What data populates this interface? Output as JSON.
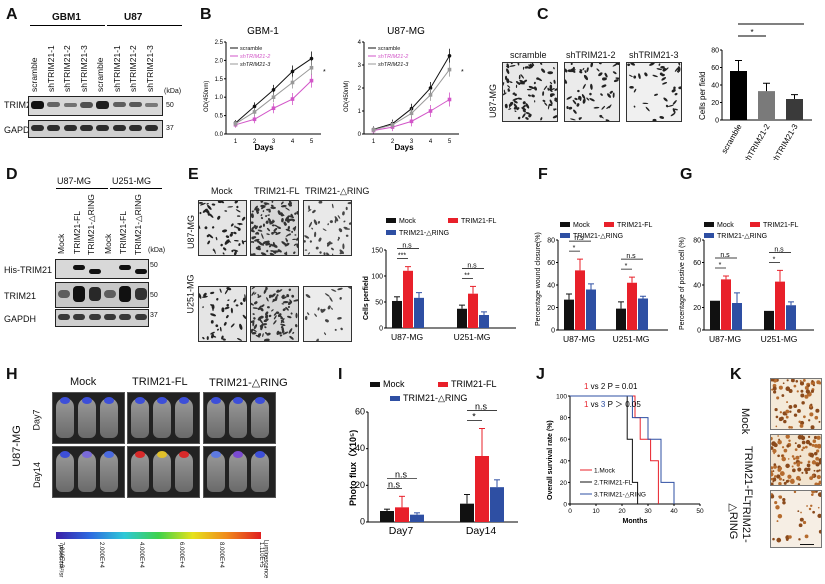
{
  "colors": {
    "mock": "#111111",
    "fl": "#e8202a",
    "dring": "#2e4fa3",
    "sc": "#111111",
    "sh2": "#d256c8",
    "sh3": "#999999"
  },
  "A": {
    "label": "A",
    "groups": [
      "GBM1",
      "U87"
    ],
    "lanes": [
      "scramble",
      "shTRIM21-1",
      "shTRIM21-2",
      "shTRIM21-3",
      "scramble",
      "shTRIM21-1",
      "shTRIM21-2",
      "shTRIM21-3"
    ],
    "rows": [
      "TRIM21",
      "GAPDH"
    ],
    "kda_label": "(kDa)",
    "kda": [
      "50",
      "37"
    ]
  },
  "B": {
    "label": "B",
    "titles": [
      "GBM-1",
      "U87-MG"
    ],
    "legend": [
      "scramble",
      "shTRIM21-2",
      "shTRIM21-3"
    ],
    "ylabel": "OD(450nm)",
    "xlabel": "Days",
    "x_ticks": [
      "1",
      "2",
      "3",
      "4",
      "5"
    ],
    "y_ticks_left": [
      "0.0",
      "0.5",
      "1.0",
      "1.5",
      "2.0",
      "2.5"
    ],
    "y_ticks_right": [
      "0",
      "1",
      "2",
      "3",
      "4"
    ],
    "sig": "*"
  },
  "C": {
    "label": "C",
    "cell_line": "U87-MG",
    "panel_titles": [
      "scramble",
      "shTRIM21-2",
      "shTRIM21-3"
    ],
    "ylabel": "Cells per field",
    "y_ticks": [
      "0",
      "20",
      "40",
      "60",
      "80"
    ],
    "sig": "*"
  },
  "D": {
    "label": "D",
    "groups": [
      "U87-MG",
      "U251-MG"
    ],
    "lanes": [
      "Mock",
      "TRIM21-FL",
      "TRIM21-△RING",
      "Mock",
      "TRIM21-FL",
      "TRIM21-△RING"
    ],
    "rows": [
      "His-TRIM21",
      "TRIM21",
      "GAPDH"
    ],
    "kda_label": "(kDa)",
    "kda": [
      "50",
      "50",
      "37"
    ]
  },
  "E": {
    "label": "E",
    "col_titles": [
      "Mock",
      "TRIM21-FL",
      "TRIM21-△RING"
    ],
    "row_titles": [
      "U87-MG",
      "U251-MG"
    ],
    "ylabel": "Cells perfield",
    "y_ticks": [
      "0",
      "50",
      "100",
      "150"
    ],
    "x_labels": [
      "U87-MG",
      "U251-MG"
    ],
    "legend": [
      "Mock",
      "TRIM21-FL",
      "TRIM21-△RING"
    ],
    "sig": [
      "***",
      "n.s",
      "**",
      "n.s"
    ]
  },
  "F": {
    "label": "F",
    "ylabel": "Percentage wound closure(%)",
    "y_ticks": [
      "0",
      "20",
      "40",
      "60",
      "80"
    ],
    "x_labels": [
      "U87-MG",
      "U251-MG"
    ],
    "legend": [
      "Mock",
      "TRIM21-FL",
      "TRIM21-△RING"
    ],
    "sig": [
      "*",
      "n.s",
      "*",
      "n.s"
    ]
  },
  "G": {
    "label": "G",
    "ylabel": "Percentage of postive cell (%)",
    "y_ticks": [
      "0",
      "20",
      "40",
      "60",
      "80"
    ],
    "x_labels": [
      "U87-MG",
      "U251-MG"
    ],
    "legend": [
      "Mock",
      "TRIM21-FL",
      "TRIM21-△RING"
    ],
    "sig": [
      "*",
      "n.s",
      "*",
      "n.s"
    ]
  },
  "H": {
    "label": "H",
    "col_titles": [
      "Mock",
      "TRIM21-FL",
      "TRIM21-△RING"
    ],
    "cell_line": "U87-MG",
    "rows": [
      "Day7",
      "Day14"
    ],
    "scale_ticks": [
      "7.610E+3",
      "2.000E+4",
      "4.000E+4",
      "6.000E+4",
      "8.000E+4",
      "1.110E+5"
    ],
    "scale_left": "p/sec/cm²/sr",
    "scale_right": "Luminescence"
  },
  "I": {
    "label": "I",
    "ylabel": "Photo flux（X10⁵)",
    "y_ticks": [
      "0",
      "20",
      "40",
      "60"
    ],
    "x_labels": [
      "Day7",
      "Day14"
    ],
    "legend": [
      "Mock",
      "TRIM21-FL",
      "TRIM21-△RING"
    ],
    "sig": [
      "n.s",
      "n.s",
      "*",
      "n.s"
    ]
  },
  "J": {
    "label": "J",
    "ylabel": "Overall survival rate (%)",
    "xlabel": "Months",
    "x_ticks": [
      "0",
      "10",
      "20",
      "30",
      "40",
      "50"
    ],
    "y_ticks": [
      "0",
      "20",
      "40",
      "60",
      "80",
      "100"
    ],
    "stats": [
      {
        "a": "1",
        "b": "2",
        "text": "P = 0.01"
      },
      {
        "a": "1",
        "b": "3",
        "text": "P ＞ 0.05"
      }
    ],
    "vs": "vs",
    "legend": [
      "1.Mock",
      "2.TRIM21-FL",
      "3.TRIM21-△RING"
    ]
  },
  "K": {
    "label": "K",
    "rows": [
      "Mock",
      "TRIM21-FL",
      "TRIM21-\n△RING"
    ]
  },
  "chart_data": [
    {
      "id": "B-GBM1",
      "type": "line",
      "title": "GBM-1",
      "xlabel": "Days",
      "ylabel": "OD(450nm)",
      "x": [
        1,
        2,
        3,
        4,
        5
      ],
      "ylim": [
        0,
        2.5
      ],
      "series": [
        {
          "name": "scramble",
          "values": [
            0.3,
            0.75,
            1.2,
            1.7,
            2.05
          ]
        },
        {
          "name": "shTRIM21-2",
          "values": [
            0.25,
            0.4,
            0.7,
            0.95,
            1.45
          ]
        },
        {
          "name": "shTRIM21-3",
          "values": [
            0.28,
            0.6,
            1.0,
            1.4,
            1.8
          ]
        }
      ]
    },
    {
      "id": "B-U87",
      "type": "line",
      "title": "U87-MG",
      "xlabel": "Days",
      "ylabel": "OD(450nM)",
      "x": [
        1,
        2,
        3,
        4,
        5
      ],
      "ylim": [
        0,
        4
      ],
      "series": [
        {
          "name": "scramble",
          "values": [
            0.2,
            0.45,
            1.1,
            2.0,
            3.4
          ]
        },
        {
          "name": "shTRIM21-2",
          "values": [
            0.15,
            0.3,
            0.55,
            1.0,
            1.5
          ]
        },
        {
          "name": "shTRIM21-3",
          "values": [
            0.18,
            0.4,
            0.9,
            1.7,
            2.8
          ]
        }
      ]
    },
    {
      "id": "C",
      "type": "bar",
      "ylabel": "Cells per field",
      "ylim": [
        0,
        80
      ],
      "categories": [
        "scramble",
        "shTRIM21-2",
        "shTRIM21-3"
      ],
      "values": [
        56,
        33,
        24
      ],
      "errors": [
        12,
        9,
        5
      ]
    },
    {
      "id": "E",
      "type": "bar",
      "ylabel": "Cells perfield",
      "ylim": [
        0,
        150
      ],
      "categories": [
        "U87-MG",
        "U251-MG"
      ],
      "series": [
        {
          "name": "Mock",
          "values": [
            52,
            37
          ],
          "errors": [
            8,
            7
          ]
        },
        {
          "name": "TRIM21-FL",
          "values": [
            110,
            66
          ],
          "errors": [
            8,
            14
          ]
        },
        {
          "name": "TRIM21-△RING",
          "values": [
            58,
            25
          ],
          "errors": [
            10,
            6
          ]
        }
      ]
    },
    {
      "id": "F",
      "type": "bar",
      "ylabel": "Percentage wound closure(%)",
      "ylim": [
        0,
        80
      ],
      "categories": [
        "U87-MG",
        "U251-MG"
      ],
      "series": [
        {
          "name": "Mock",
          "values": [
            27,
            19
          ],
          "errors": [
            5,
            6
          ]
        },
        {
          "name": "TRIM21-FL",
          "values": [
            53,
            42
          ],
          "errors": [
            10,
            5
          ]
        },
        {
          "name": "TRIM21-△RING",
          "values": [
            36,
            28
          ],
          "errors": [
            5,
            2
          ]
        }
      ]
    },
    {
      "id": "G",
      "type": "bar",
      "ylabel": "Percentage of postive cell (%)",
      "ylim": [
        0,
        80
      ],
      "categories": [
        "U87-MG",
        "U251-MG"
      ],
      "series": [
        {
          "name": "Mock",
          "values": [
            26,
            17
          ],
          "errors": [
            0,
            0
          ]
        },
        {
          "name": "TRIM21-FL",
          "values": [
            45,
            43
          ],
          "errors": [
            3,
            10
          ]
        },
        {
          "name": "TRIM21-△RING",
          "values": [
            24,
            22
          ],
          "errors": [
            9,
            3
          ]
        }
      ]
    },
    {
      "id": "I",
      "type": "bar",
      "ylabel": "Photo flux (X10⁵)",
      "ylim": [
        0,
        60
      ],
      "categories": [
        "Day7",
        "Day14"
      ],
      "series": [
        {
          "name": "Mock",
          "values": [
            6,
            10
          ],
          "errors": [
            1,
            5
          ]
        },
        {
          "name": "TRIM21-FL",
          "values": [
            8,
            36
          ],
          "errors": [
            6,
            15
          ]
        },
        {
          "name": "TRIM21-△RING",
          "values": [
            4,
            19
          ],
          "errors": [
            1,
            4
          ]
        }
      ]
    },
    {
      "id": "J",
      "type": "line",
      "xlabel": "Months",
      "ylabel": "Overall survival rate (%)",
      "xlim": [
        0,
        50
      ],
      "ylim": [
        0,
        100
      ],
      "series": [
        {
          "name": "1.Mock",
          "x": [
            0,
            25,
            25,
            27,
            27,
            31,
            31,
            34,
            34
          ],
          "values": [
            100,
            100,
            80,
            80,
            60,
            60,
            40,
            40,
            0
          ]
        },
        {
          "name": "2.TRIM21-FL",
          "x": [
            0,
            22,
            22,
            24,
            24,
            26,
            26
          ],
          "values": [
            100,
            100,
            60,
            60,
            20,
            20,
            0
          ]
        },
        {
          "name": "3.TRIM21-△RING",
          "x": [
            0,
            24,
            24,
            30,
            30,
            35,
            35,
            40,
            40
          ],
          "values": [
            100,
            100,
            80,
            80,
            60,
            60,
            20,
            20,
            0
          ]
        }
      ]
    }
  ]
}
